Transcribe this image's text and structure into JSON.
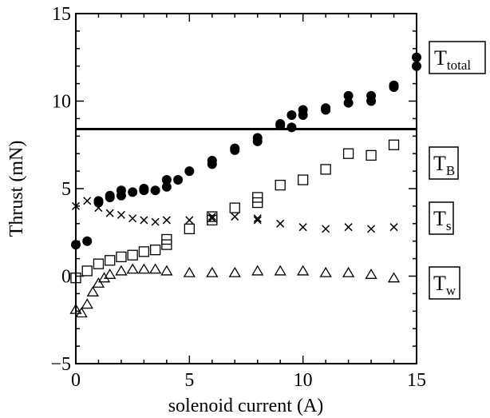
{
  "chart_data": {
    "type": "scatter",
    "xlabel": "solenoid current (A)",
    "ylabel": "Thrust (mN)",
    "xlim": [
      0,
      15
    ],
    "ylim": [
      -5,
      15
    ],
    "xticks": [
      0,
      5,
      10,
      15
    ],
    "yticks": [
      -5,
      0,
      5,
      10,
      15
    ],
    "xtick_labels": [
      "0",
      "5",
      "10",
      "15"
    ],
    "ytick_labels": [
      "−5",
      "0",
      "5",
      "10",
      "15"
    ],
    "grid": false,
    "reference_line": {
      "y": 8.4,
      "style": "solid"
    },
    "series": [
      {
        "key": "total",
        "label_main": "T",
        "label_sub": "total",
        "marker": "filled-circle",
        "points": [
          [
            0,
            1.8
          ],
          [
            0.5,
            2.0
          ],
          [
            1,
            4.2
          ],
          [
            1,
            4.3
          ],
          [
            1.5,
            4.5
          ],
          [
            1.5,
            4.6
          ],
          [
            2,
            4.6
          ],
          [
            2,
            4.9
          ],
          [
            2.5,
            4.8
          ],
          [
            3,
            4.9
          ],
          [
            3,
            5.0
          ],
          [
            3.5,
            4.9
          ],
          [
            4,
            5.1
          ],
          [
            4,
            5.5
          ],
          [
            4.5,
            5.5
          ],
          [
            5,
            6.0
          ],
          [
            6,
            6.4
          ],
          [
            6,
            6.6
          ],
          [
            7,
            7.2
          ],
          [
            7,
            7.3
          ],
          [
            8,
            7.7
          ],
          [
            8,
            7.9
          ],
          [
            9,
            8.6
          ],
          [
            9,
            8.7
          ],
          [
            9.5,
            8.5
          ],
          [
            9.5,
            9.2
          ],
          [
            10,
            9.2
          ],
          [
            10,
            9.5
          ],
          [
            11,
            9.5
          ],
          [
            11,
            9.6
          ],
          [
            12,
            9.9
          ],
          [
            12,
            10.3
          ],
          [
            13,
            10.0
          ],
          [
            13,
            10.3
          ],
          [
            14,
            10.8
          ],
          [
            14,
            10.9
          ],
          [
            15,
            12.0
          ],
          [
            15,
            12.5
          ]
        ]
      },
      {
        "key": "B",
        "label_main": "T",
        "label_sub": "B",
        "marker": "open-square",
        "points": [
          [
            0,
            -0.1
          ],
          [
            0.5,
            0.3
          ],
          [
            1,
            0.7
          ],
          [
            1.5,
            0.9
          ],
          [
            2,
            1.1
          ],
          [
            2.5,
            1.2
          ],
          [
            3,
            1.4
          ],
          [
            3.5,
            1.5
          ],
          [
            4,
            1.8
          ],
          [
            4,
            2.1
          ],
          [
            5,
            2.7
          ],
          [
            6,
            3.2
          ],
          [
            6,
            3.4
          ],
          [
            7,
            3.9
          ],
          [
            8,
            4.2
          ],
          [
            8,
            4.5
          ],
          [
            9,
            5.2
          ],
          [
            10,
            5.5
          ],
          [
            11,
            6.1
          ],
          [
            12,
            7.0
          ],
          [
            13,
            6.9
          ],
          [
            14,
            7.5
          ]
        ]
      },
      {
        "key": "s",
        "label_main": "T",
        "label_sub": "s",
        "marker": "cross",
        "points": [
          [
            0,
            4.0
          ],
          [
            0.5,
            4.3
          ],
          [
            1,
            3.9
          ],
          [
            1.5,
            3.6
          ],
          [
            2,
            3.5
          ],
          [
            2.5,
            3.3
          ],
          [
            3,
            3.2
          ],
          [
            3.5,
            3.1
          ],
          [
            4,
            3.2
          ],
          [
            5,
            3.2
          ],
          [
            6,
            3.3
          ],
          [
            6,
            3.4
          ],
          [
            7,
            3.4
          ],
          [
            8,
            3.2
          ],
          [
            8,
            3.3
          ],
          [
            9,
            3.0
          ],
          [
            10,
            2.8
          ],
          [
            11,
            2.7
          ],
          [
            12,
            2.8
          ],
          [
            13,
            2.7
          ],
          [
            14,
            2.8
          ]
        ]
      },
      {
        "key": "w",
        "label_main": "T",
        "label_sub": "w",
        "marker": "open-triangle",
        "points": [
          [
            0,
            -1.9
          ],
          [
            0.25,
            -2.1
          ],
          [
            0.5,
            -1.6
          ],
          [
            0.75,
            -0.9
          ],
          [
            1,
            -0.4
          ],
          [
            1.25,
            -0.1
          ],
          [
            1.5,
            0.1
          ],
          [
            2,
            0.3
          ],
          [
            2.5,
            0.4
          ],
          [
            3,
            0.4
          ],
          [
            3.5,
            0.4
          ],
          [
            4,
            0.3
          ],
          [
            5,
            0.2
          ],
          [
            6,
            0.2
          ],
          [
            7,
            0.2
          ],
          [
            8,
            0.3
          ],
          [
            9,
            0.3
          ],
          [
            10,
            0.3
          ],
          [
            11,
            0.2
          ],
          [
            12,
            0.2
          ],
          [
            13,
            0.1
          ],
          [
            14,
            -0.1
          ]
        ]
      }
    ]
  }
}
